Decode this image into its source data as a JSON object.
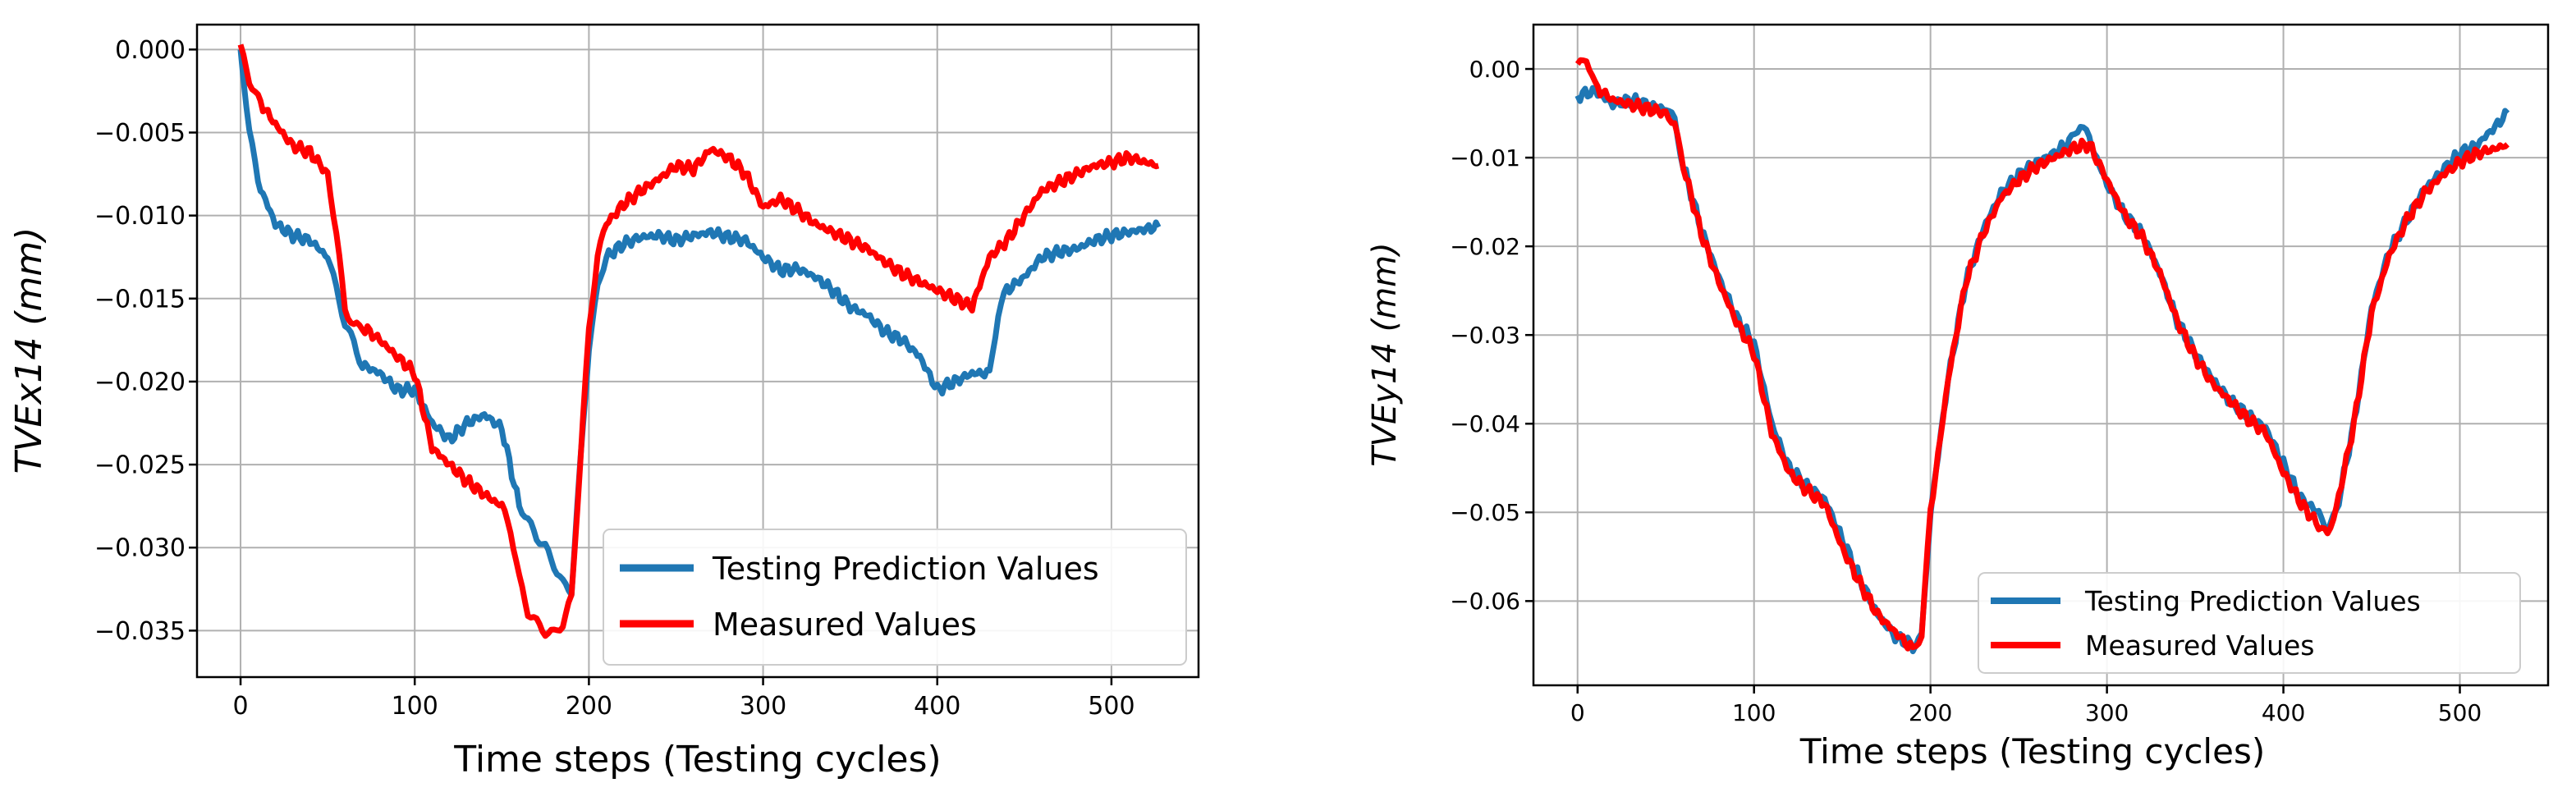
{
  "colors": {
    "prediction": "#1f77b4",
    "measured": "#ff0000",
    "grid": "#b0b0b0"
  },
  "chart_data": [
    {
      "type": "line",
      "xlabel": "Time steps (Testing cycles)",
      "ylabel_prefix": "TVEx14 ",
      "ylabel_unit": "(mm)",
      "xlim": [
        -25,
        550
      ],
      "ylim": [
        -0.0378,
        0.0015
      ],
      "xticks": [
        0,
        100,
        200,
        300,
        400,
        500
      ],
      "xtick_labels": [
        "0",
        "100",
        "200",
        "300",
        "400",
        "500"
      ],
      "yticks": [
        0.0,
        -0.005,
        -0.01,
        -0.015,
        -0.02,
        -0.025,
        -0.03,
        -0.035
      ],
      "ytick_labels": [
        "0.000",
        "−0.005",
        "−0.010",
        "−0.015",
        "−0.020",
        "−0.025",
        "−0.030",
        "−0.035"
      ],
      "grid": true,
      "legend_position": "lower-right",
      "series": [
        {
          "name": "Testing Prediction Values",
          "color_key": "prediction",
          "x": [
            0,
            5,
            10,
            20,
            30,
            40,
            50,
            55,
            60,
            65,
            70,
            80,
            90,
            100,
            110,
            120,
            130,
            140,
            150,
            160,
            165,
            170,
            175,
            180,
            185,
            190,
            195,
            200,
            205,
            210,
            220,
            230,
            240,
            250,
            260,
            270,
            280,
            290,
            300,
            310,
            320,
            330,
            340,
            350,
            360,
            370,
            380,
            390,
            400,
            410,
            420,
            430,
            435,
            440,
            450,
            460,
            470,
            480,
            490,
            500,
            510,
            520,
            527
          ],
          "y": [
            0.0,
            -0.005,
            -0.008,
            -0.0105,
            -0.0112,
            -0.0115,
            -0.0125,
            -0.0145,
            -0.0165,
            -0.0175,
            -0.019,
            -0.0195,
            -0.0205,
            -0.0205,
            -0.0225,
            -0.0235,
            -0.0225,
            -0.022,
            -0.0228,
            -0.0275,
            -0.0285,
            -0.0295,
            -0.03,
            -0.031,
            -0.032,
            -0.0325,
            -0.025,
            -0.018,
            -0.0145,
            -0.0125,
            -0.0117,
            -0.0113,
            -0.0112,
            -0.0115,
            -0.0112,
            -0.011,
            -0.0113,
            -0.0115,
            -0.0125,
            -0.0133,
            -0.0132,
            -0.0137,
            -0.0145,
            -0.0155,
            -0.016,
            -0.017,
            -0.0175,
            -0.0185,
            -0.0205,
            -0.02,
            -0.0195,
            -0.0195,
            -0.016,
            -0.0145,
            -0.0137,
            -0.0125,
            -0.0122,
            -0.012,
            -0.0115,
            -0.0112,
            -0.011,
            -0.0108,
            -0.0107
          ]
        },
        {
          "name": "Measured Values",
          "color_key": "measured",
          "x": [
            0,
            5,
            10,
            20,
            30,
            40,
            50,
            55,
            60,
            65,
            70,
            80,
            90,
            100,
            110,
            120,
            130,
            140,
            150,
            155,
            160,
            165,
            170,
            175,
            180,
            185,
            190,
            195,
            200,
            205,
            210,
            220,
            230,
            240,
            250,
            260,
            270,
            280,
            290,
            300,
            310,
            320,
            330,
            340,
            350,
            360,
            370,
            380,
            390,
            400,
            410,
            420,
            430,
            440,
            450,
            460,
            470,
            480,
            490,
            500,
            510,
            520,
            527
          ],
          "y": [
            0.0,
            -0.002,
            -0.003,
            -0.0045,
            -0.0058,
            -0.0062,
            -0.0075,
            -0.011,
            -0.0155,
            -0.0165,
            -0.0167,
            -0.0175,
            -0.0185,
            -0.0195,
            -0.024,
            -0.025,
            -0.026,
            -0.0268,
            -0.0275,
            -0.029,
            -0.032,
            -0.034,
            -0.0345,
            -0.035,
            -0.035,
            -0.0345,
            -0.033,
            -0.025,
            -0.017,
            -0.0125,
            -0.0105,
            -0.0093,
            -0.0085,
            -0.0078,
            -0.007,
            -0.0072,
            -0.006,
            -0.0065,
            -0.0075,
            -0.0095,
            -0.009,
            -0.0097,
            -0.0105,
            -0.011,
            -0.0115,
            -0.012,
            -0.0128,
            -0.0135,
            -0.014,
            -0.0145,
            -0.015,
            -0.0155,
            -0.0125,
            -0.0115,
            -0.01,
            -0.0085,
            -0.008,
            -0.0075,
            -0.007,
            -0.0068,
            -0.0065,
            -0.0068,
            -0.007
          ]
        }
      ]
    },
    {
      "type": "line",
      "xlabel": "Time steps (Testing cycles)",
      "ylabel_prefix": "TVEy14 ",
      "ylabel_unit": "(mm)",
      "xlim": [
        -25,
        550
      ],
      "ylim": [
        -0.0695,
        0.005
      ],
      "xticks": [
        0,
        100,
        200,
        300,
        400,
        500
      ],
      "xtick_labels": [
        "0",
        "100",
        "200",
        "300",
        "400",
        "500"
      ],
      "yticks": [
        0.0,
        -0.01,
        -0.02,
        -0.03,
        -0.04,
        -0.05,
        -0.06
      ],
      "ytick_labels": [
        "0.00",
        "−0.01",
        "−0.02",
        "−0.03",
        "−0.04",
        "−0.05",
        "−0.06"
      ],
      "grid": true,
      "legend_position": "lower-right",
      "series": [
        {
          "name": "Testing Prediction Values",
          "color_key": "prediction",
          "x": [
            0,
            10,
            20,
            30,
            40,
            50,
            55,
            60,
            70,
            80,
            90,
            100,
            110,
            120,
            130,
            140,
            150,
            160,
            170,
            180,
            190,
            195,
            200,
            210,
            220,
            230,
            240,
            250,
            260,
            270,
            280,
            285,
            290,
            300,
            310,
            320,
            330,
            340,
            350,
            360,
            370,
            380,
            390,
            400,
            410,
            420,
            425,
            430,
            440,
            450,
            460,
            470,
            480,
            490,
            500,
            510,
            520,
            527
          ],
          "y": [
            -0.003,
            -0.0025,
            -0.004,
            -0.0035,
            -0.004,
            -0.0045,
            -0.006,
            -0.011,
            -0.018,
            -0.0235,
            -0.028,
            -0.031,
            -0.04,
            -0.045,
            -0.047,
            -0.0485,
            -0.053,
            -0.0575,
            -0.0615,
            -0.064,
            -0.065,
            -0.064,
            -0.05,
            -0.035,
            -0.024,
            -0.018,
            -0.014,
            -0.012,
            -0.0105,
            -0.0095,
            -0.008,
            -0.0065,
            -0.008,
            -0.013,
            -0.0165,
            -0.0185,
            -0.023,
            -0.0285,
            -0.032,
            -0.035,
            -0.0375,
            -0.039,
            -0.0405,
            -0.0445,
            -0.0485,
            -0.05,
            -0.0515,
            -0.05,
            -0.04,
            -0.027,
            -0.0205,
            -0.017,
            -0.0135,
            -0.0115,
            -0.0095,
            -0.0085,
            -0.0065,
            -0.005
          ]
        },
        {
          "name": "Measured Values",
          "color_key": "measured",
          "x": [
            0,
            5,
            10,
            20,
            30,
            40,
            50,
            55,
            60,
            70,
            80,
            90,
            100,
            110,
            120,
            130,
            140,
            150,
            160,
            170,
            180,
            190,
            195,
            200,
            210,
            220,
            230,
            240,
            250,
            260,
            270,
            280,
            290,
            300,
            310,
            320,
            330,
            340,
            350,
            360,
            370,
            380,
            390,
            400,
            410,
            420,
            425,
            430,
            440,
            450,
            460,
            470,
            480,
            490,
            500,
            510,
            520,
            527
          ],
          "y": [
            0.0,
            0.001,
            -0.002,
            -0.0035,
            -0.004,
            -0.0045,
            -0.005,
            -0.006,
            -0.011,
            -0.0185,
            -0.024,
            -0.0285,
            -0.032,
            -0.041,
            -0.0455,
            -0.0475,
            -0.049,
            -0.054,
            -0.058,
            -0.0615,
            -0.0635,
            -0.0655,
            -0.064,
            -0.05,
            -0.035,
            -0.024,
            -0.0185,
            -0.0145,
            -0.0125,
            -0.011,
            -0.01,
            -0.009,
            -0.0085,
            -0.0125,
            -0.0165,
            -0.019,
            -0.023,
            -0.0285,
            -0.0325,
            -0.0355,
            -0.0375,
            -0.0395,
            -0.041,
            -0.0455,
            -0.049,
            -0.0515,
            -0.0525,
            -0.0495,
            -0.04,
            -0.0275,
            -0.021,
            -0.017,
            -0.014,
            -0.012,
            -0.0105,
            -0.0095,
            -0.009,
            -0.0085
          ]
        }
      ]
    }
  ]
}
